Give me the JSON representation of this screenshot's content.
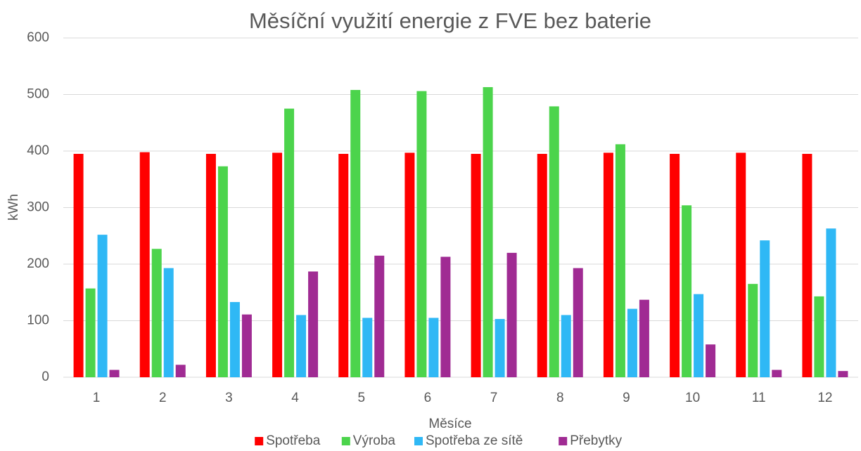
{
  "chart_data": {
    "type": "bar",
    "title": "Měsíční využití energie z FVE bez baterie",
    "x_label": "Měsíce",
    "y_label": "kWh",
    "categories": [
      "1",
      "2",
      "3",
      "4",
      "5",
      "6",
      "7",
      "8",
      "9",
      "10",
      "11",
      "12"
    ],
    "series": [
      {
        "name": "Spotřeba",
        "color": "#ff0000",
        "values": [
          395,
          398,
          395,
          397,
          395,
          397,
          395,
          395,
          397,
          395,
          397,
          395
        ]
      },
      {
        "name": "Výroba",
        "color": "#4cd44c",
        "values": [
          157,
          227,
          373,
          475,
          508,
          506,
          513,
          479,
          412,
          304,
          165,
          143
        ]
      },
      {
        "name": "Spotřeba ze sítě",
        "color": "#2fb8f5",
        "values": [
          252,
          193,
          133,
          110,
          105,
          105,
          103,
          110,
          121,
          147,
          242,
          263
        ]
      },
      {
        "name": "Přebytky",
        "color": "#a02b93",
        "values": [
          13,
          22,
          111,
          187,
          215,
          213,
          220,
          193,
          137,
          58,
          13,
          11
        ]
      }
    ],
    "ylim": [
      0,
      600
    ],
    "yticks": [
      0,
      100,
      200,
      300,
      400,
      500,
      600
    ],
    "grid": true,
    "legend": "bottom"
  }
}
